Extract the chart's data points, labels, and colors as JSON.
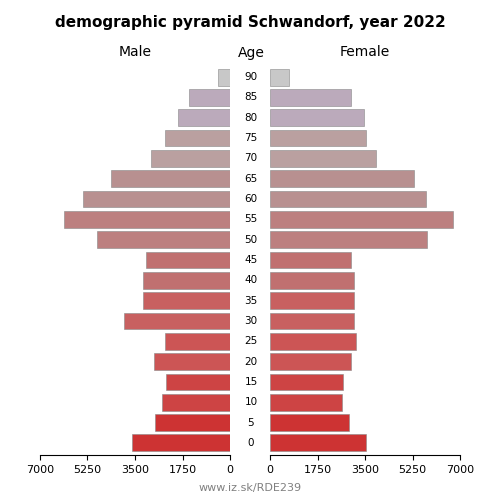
{
  "title": "demographic pyramid Schwandorf, year 2022",
  "age_labels": [
    "0",
    "5",
    "10",
    "15",
    "20",
    "25",
    "30",
    "35",
    "40",
    "45",
    "50",
    "55",
    "60",
    "65",
    "70",
    "75",
    "80",
    "85",
    "90"
  ],
  "male": [
    3600,
    2750,
    2500,
    2350,
    2800,
    2400,
    3900,
    3200,
    3200,
    3100,
    4900,
    6100,
    5400,
    4400,
    2900,
    2400,
    1900,
    1500,
    450
  ],
  "female": [
    3550,
    2900,
    2650,
    2700,
    3000,
    3150,
    3100,
    3100,
    3100,
    3000,
    5800,
    6750,
    5750,
    5300,
    3900,
    3550,
    3450,
    3000,
    700
  ],
  "xlim": 7000,
  "xlabel_left": "Male",
  "xlabel_right": "Female",
  "age_axis_label": "Age",
  "footer": "www.iz.sk/RDE239",
  "bar_colors": [
    "#cd3333",
    "#cd3333",
    "#cd4444",
    "#cd4444",
    "#cc5555",
    "#cc5555",
    "#c86060",
    "#c86060",
    "#c07070",
    "#c07070",
    "#bc8080",
    "#bc8080",
    "#b89090",
    "#b89090",
    "#baa0a0",
    "#baa0a0",
    "#bbaabb",
    "#bbaabb",
    "#c8c8c8"
  ]
}
